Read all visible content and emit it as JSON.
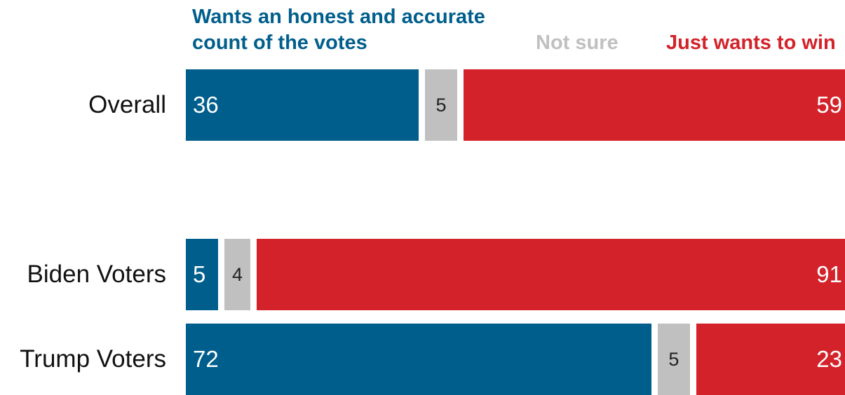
{
  "colors": {
    "honest": "#005e8c",
    "not_sure": "#c0c0c0",
    "win": "#d3222a"
  },
  "chart_data": {
    "type": "bar",
    "orientation": "horizontal-stacked",
    "series": [
      {
        "name": "Wants an honest and accurate count of the votes",
        "key": "honest",
        "values": [
          36,
          5,
          72
        ]
      },
      {
        "name": "Not sure",
        "key": "not_sure",
        "values": [
          5,
          4,
          5
        ]
      },
      {
        "name": "Just wants to win",
        "key": "win",
        "values": [
          59,
          91,
          23
        ]
      }
    ],
    "rows": [
      {
        "label": "Overall",
        "values": [
          36,
          5,
          59
        ]
      },
      {
        "label": "Biden Voters",
        "values": [
          5,
          4,
          91
        ]
      },
      {
        "label": "Trump Voters",
        "values": [
          72,
          5,
          23
        ]
      }
    ],
    "legend": [
      {
        "label": "Wants an honest and accurate count of the votes",
        "key": "honest"
      },
      {
        "label": "Not sure",
        "key": "not_sure"
      },
      {
        "label": "Just wants to win",
        "key": "win"
      }
    ],
    "legend_placement": "top",
    "grid": false
  }
}
